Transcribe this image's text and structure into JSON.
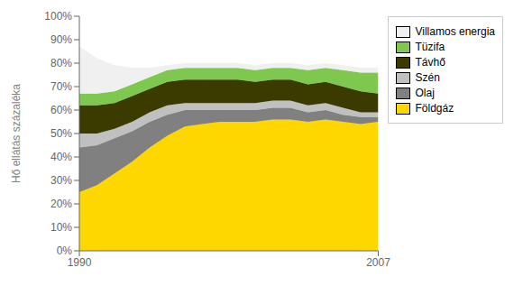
{
  "chart_data": {
    "type": "area",
    "stacked": true,
    "ylabel": "Hő ellátás százaléka",
    "x": [
      1990,
      1991,
      1992,
      1993,
      1994,
      1995,
      1996,
      1997,
      1998,
      1999,
      2000,
      2001,
      2002,
      2003,
      2004,
      2005,
      2006,
      2007
    ],
    "xlim": [
      1990,
      2007
    ],
    "xticks": [
      1990,
      2007
    ],
    "ylim": [
      0,
      100
    ],
    "yticks": [
      {
        "value": 0,
        "label": "0%"
      },
      {
        "value": 10,
        "label": "10%"
      },
      {
        "value": 20,
        "label": "20%"
      },
      {
        "value": 30,
        "label": "30%"
      },
      {
        "value": 40,
        "label": "40%"
      },
      {
        "value": 50,
        "label": "50%"
      },
      {
        "value": 60,
        "label": "60%"
      },
      {
        "value": 70,
        "label": "70%"
      },
      {
        "value": 80,
        "label": "80%"
      },
      {
        "value": 90,
        "label": "90%"
      },
      {
        "value": 100,
        "label": "100%"
      }
    ],
    "grid": false,
    "legend": "right",
    "series": [
      {
        "name": "Földgáz",
        "color": "#FFD700",
        "values": [
          25,
          28,
          33,
          38,
          44,
          49,
          53,
          54,
          55,
          55,
          55,
          56,
          56,
          55,
          56,
          55,
          54,
          55
        ]
      },
      {
        "name": "Olaj",
        "color": "#808080",
        "values": [
          19,
          17,
          15,
          13,
          11,
          9,
          7,
          6,
          5,
          5,
          5,
          5,
          5,
          4,
          4,
          3,
          3,
          2
        ]
      },
      {
        "name": "Szén",
        "color": "#C0C0C0",
        "values": [
          6,
          5,
          4,
          4,
          4,
          4,
          3,
          3,
          3,
          3,
          3,
          3,
          3,
          3,
          3,
          3,
          2,
          2
        ]
      },
      {
        "name": "Távhő",
        "color": "#3B3B00",
        "values": [
          12,
          12,
          11,
          11,
          10,
          10,
          10,
          10,
          10,
          10,
          9,
          9,
          9,
          9,
          9,
          9,
          9,
          8
        ]
      },
      {
        "name": "Tüzifa",
        "color": "#7EC850",
        "values": [
          5,
          5,
          5,
          5,
          5,
          5,
          5,
          5,
          5,
          5,
          5,
          5,
          5,
          6,
          6,
          7,
          8,
          9
        ]
      },
      {
        "name": "Villamos energia",
        "color": "#F0F0F0",
        "values": [
          20,
          15,
          11,
          7,
          4,
          2,
          2,
          2,
          2,
          2,
          2,
          2,
          2,
          2,
          2,
          2,
          2,
          2
        ]
      }
    ]
  }
}
